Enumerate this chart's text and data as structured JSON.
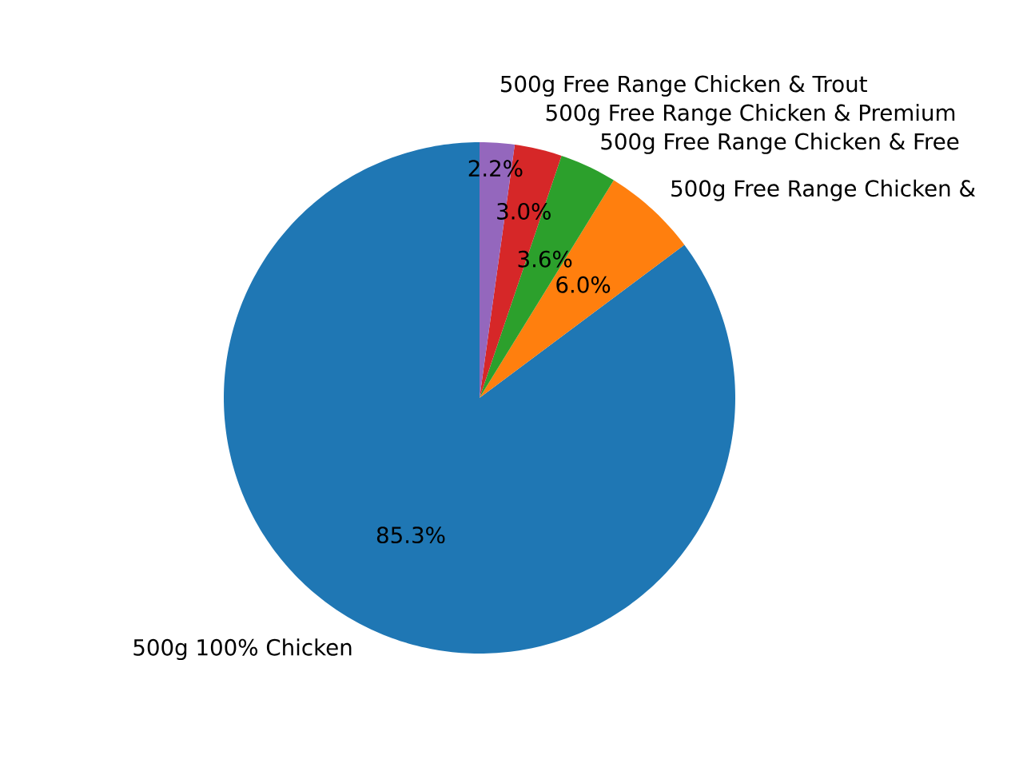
{
  "chart_data": {
    "type": "pie",
    "categories": [
      "500g 100% Chicken",
      "500g Free Range Chicken &",
      "500g Free Range Chicken & Free",
      "500g Free Range Chicken & Premium",
      "500g Free Range Chicken & Trout"
    ],
    "values": [
      85.3,
      6.0,
      3.6,
      3.0,
      2.2
    ],
    "colors": [
      "#1f77b4",
      "#ff7f0e",
      "#2ca02c",
      "#d62728",
      "#9467bd"
    ],
    "value_labels": [
      "85.3%",
      "6.0%",
      "3.6%",
      "3.0%",
      "2.2%"
    ]
  }
}
